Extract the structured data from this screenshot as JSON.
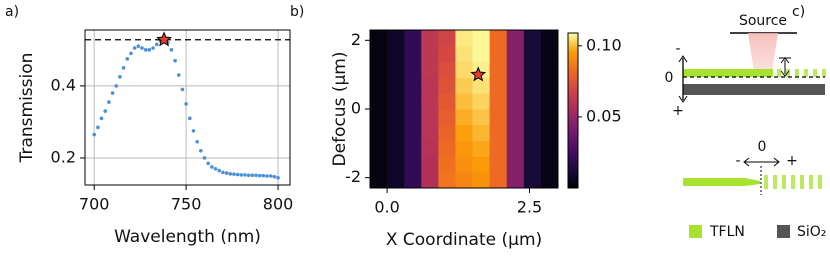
{
  "chart_data": [
    {
      "type": "scatter",
      "panel": "a)",
      "xlabel": "Wavelength (nm)",
      "ylabel": "Transmission",
      "color": "#4a90d9",
      "grid": true,
      "x": [
        700,
        702,
        704,
        706,
        708,
        710,
        712,
        714,
        716,
        718,
        720,
        722,
        724,
        726,
        728,
        730,
        732,
        734,
        736,
        738,
        740,
        742,
        744,
        746,
        748,
        750,
        752,
        754,
        756,
        758,
        760,
        762,
        764,
        766,
        768,
        770,
        772,
        774,
        776,
        778,
        780,
        782,
        784,
        786,
        788,
        790,
        792,
        794,
        796,
        798,
        800
      ],
      "values": [
        0.265,
        0.285,
        0.31,
        0.33,
        0.355,
        0.38,
        0.4,
        0.425,
        0.45,
        0.475,
        0.49,
        0.505,
        0.51,
        0.505,
        0.5,
        0.5,
        0.505,
        0.515,
        0.525,
        0.528,
        0.52,
        0.5,
        0.47,
        0.43,
        0.39,
        0.35,
        0.31,
        0.275,
        0.245,
        0.22,
        0.2,
        0.185,
        0.175,
        0.17,
        0.165,
        0.16,
        0.158,
        0.156,
        0.155,
        0.154,
        0.153,
        0.153,
        0.152,
        0.152,
        0.152,
        0.151,
        0.151,
        0.15,
        0.15,
        0.148,
        0.145
      ],
      "xlim": [
        695,
        806.5
      ],
      "ylim": [
        0.125,
        0.555
      ],
      "xticks": [
        700,
        750,
        800
      ],
      "yticks": [
        {
          "value": 0.2,
          "label": "0.2"
        },
        {
          "value": 0.4,
          "label": "0.4"
        }
      ],
      "hline": 0.528,
      "marker": {
        "x": 738,
        "y": 0.528
      }
    },
    {
      "type": "heatmap",
      "panel": "b)",
      "xlabel": "X Coordinate (μm)",
      "ylabel": "Defocus (μm)",
      "x": [
        -0.15,
        0.15,
        0.45,
        0.75,
        1.05,
        1.35,
        1.65,
        1.95,
        2.25,
        2.55,
        2.85
      ],
      "y": [
        -2.07,
        -1.61,
        -1.15,
        -0.69,
        -0.23,
        0.23,
        0.69,
        1.15,
        1.61,
        2.07
      ],
      "z": [
        [
          0.003,
          0.008,
          0.02,
          0.058,
          0.085,
          0.09,
          0.093,
          0.082,
          0.045,
          0.012,
          0.004
        ],
        [
          0.003,
          0.008,
          0.02,
          0.058,
          0.084,
          0.092,
          0.095,
          0.082,
          0.045,
          0.012,
          0.004
        ],
        [
          0.003,
          0.008,
          0.02,
          0.059,
          0.082,
          0.094,
          0.097,
          0.082,
          0.045,
          0.012,
          0.004
        ],
        [
          0.003,
          0.008,
          0.02,
          0.06,
          0.08,
          0.096,
          0.099,
          0.082,
          0.045,
          0.012,
          0.004
        ],
        [
          0.003,
          0.008,
          0.02,
          0.06,
          0.078,
          0.098,
          0.101,
          0.082,
          0.045,
          0.012,
          0.004
        ],
        [
          0.003,
          0.008,
          0.02,
          0.061,
          0.076,
          0.1,
          0.103,
          0.082,
          0.045,
          0.012,
          0.004
        ],
        [
          0.003,
          0.008,
          0.02,
          0.061,
          0.074,
          0.102,
          0.105,
          0.082,
          0.045,
          0.012,
          0.004
        ],
        [
          0.003,
          0.008,
          0.02,
          0.062,
          0.072,
          0.104,
          0.107,
          0.082,
          0.045,
          0.012,
          0.004
        ],
        [
          0.003,
          0.008,
          0.02,
          0.062,
          0.07,
          0.105,
          0.108,
          0.082,
          0.045,
          0.012,
          0.004
        ],
        [
          0.003,
          0.008,
          0.02,
          0.062,
          0.068,
          0.106,
          0.108,
          0.082,
          0.045,
          0.012,
          0.004
        ]
      ],
      "xlim": [
        -0.3,
        3.0
      ],
      "ylim": [
        -2.3,
        2.3
      ],
      "xticks": [
        {
          "value": 0,
          "label": "0.0"
        },
        {
          "value": 2.5,
          "label": "2.5"
        }
      ],
      "yticks": [
        -2,
        0,
        2
      ],
      "clim": [
        0,
        0.109
      ],
      "cticks": [
        {
          "value": 0.05,
          "label": "0.05"
        },
        {
          "value": 0.1,
          "label": "0.10"
        }
      ],
      "marker": {
        "x": 1.6,
        "y": 1.0
      }
    }
  ],
  "panel_c": {
    "panel": "c)",
    "source": "Source",
    "vertical_axis": [
      "-",
      "0",
      "+"
    ],
    "horizontal_axis": [
      "-",
      "0",
      "+"
    ],
    "legend": [
      "TFLN",
      "SiO₂"
    ]
  }
}
